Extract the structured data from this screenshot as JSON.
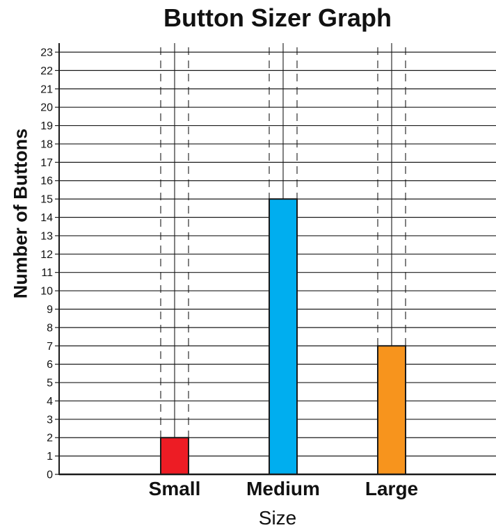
{
  "chart_data": {
    "type": "bar",
    "title": "Button Sizer Graph",
    "xlabel": "Size",
    "ylabel": "Number of Buttons",
    "categories": [
      "Small",
      "Medium",
      "Large"
    ],
    "values": [
      2,
      15,
      7
    ],
    "colors": [
      "#ed1c24",
      "#00aeef",
      "#f7941d"
    ],
    "ylim": [
      0,
      23
    ],
    "yticks": [
      "0",
      "1",
      "2",
      "3",
      "4",
      "5",
      "6",
      "7",
      "8",
      "9",
      "10",
      "11",
      "12",
      "13",
      "14",
      "15",
      "16",
      "17",
      "18",
      "19",
      "20",
      "21",
      "22",
      "23"
    ],
    "grid": true
  }
}
